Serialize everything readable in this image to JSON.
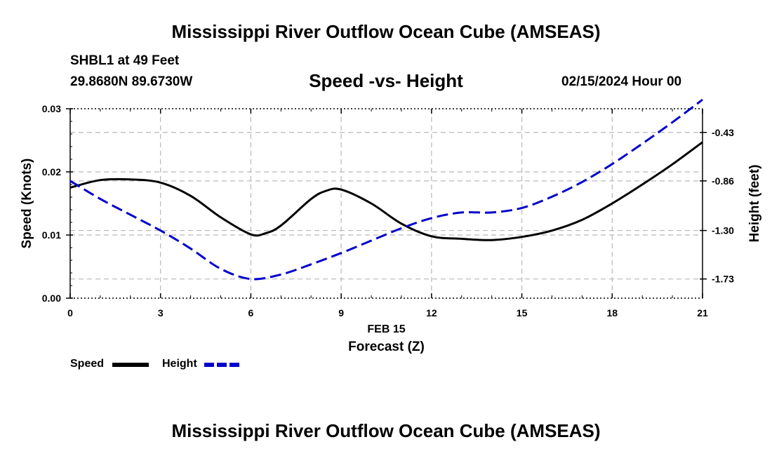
{
  "header": {
    "title": "Mississippi River Outflow Ocean Cube (AMSEAS)",
    "station": "SHBL1 at 49 Feet",
    "coords": "29.8680N  89.6730W",
    "chart_title": "Speed -vs- Height",
    "datetime": "02/15/2024 Hour 00"
  },
  "footer": {
    "title": "Mississippi River Outflow Ocean Cube (AMSEAS)"
  },
  "legend": {
    "items": [
      {
        "label": "Speed",
        "color": "#000000",
        "style": "solid"
      },
      {
        "label": "Height",
        "color": "#0000cc",
        "style": "dashed"
      }
    ]
  },
  "chart_data": {
    "type": "line",
    "title": "Speed -vs- Height",
    "xlabel": "Forecast (Z)",
    "xlabel_date": "FEB 15",
    "ylabel": "Speed (Knots)",
    "y2label": "Height (feet)",
    "xlim": [
      0,
      21
    ],
    "ylim": [
      0,
      0.03
    ],
    "y2lim": [
      -1.9,
      -0.22
    ],
    "x_ticks": [
      0,
      3,
      6,
      9,
      12,
      15,
      18,
      21
    ],
    "x_tick_labels": [
      "0",
      "3",
      "6",
      "9",
      "12",
      "15",
      "18",
      "21"
    ],
    "y_ticks": [
      0,
      0.01,
      0.02,
      0.03
    ],
    "y_tick_labels": [
      "0.00",
      "0.01",
      "0.02",
      "0.03"
    ],
    "y2_ticks": [
      -1.73,
      -1.3,
      -0.86,
      -0.43
    ],
    "y2_tick_labels": [
      "-1.73",
      "-1.30",
      "-0.86",
      "-0.43"
    ],
    "grid": true,
    "series": [
      {
        "name": "Speed",
        "axis": "left",
        "color": "#000000",
        "x": [
          0,
          1,
          2,
          3,
          4,
          5,
          6,
          6.5,
          7,
          8,
          8.5,
          9,
          10,
          11,
          12,
          13,
          14,
          15,
          16,
          17,
          18,
          19,
          20,
          21
        ],
        "values": [
          0.0175,
          0.0187,
          0.0188,
          0.0183,
          0.0162,
          0.0128,
          0.0101,
          0.0103,
          0.0115,
          0.0157,
          0.017,
          0.0172,
          0.015,
          0.0118,
          0.0098,
          0.0094,
          0.0092,
          0.0097,
          0.0107,
          0.0124,
          0.015,
          0.018,
          0.0212,
          0.0247
        ]
      },
      {
        "name": "Height",
        "axis": "right",
        "color": "#0000cc",
        "x": [
          0,
          1,
          2,
          3,
          4,
          5,
          6,
          7,
          8,
          9,
          10,
          11,
          12,
          13,
          14,
          15,
          16,
          17,
          18,
          19,
          20,
          21
        ],
        "values": [
          -0.86,
          -1.02,
          -1.16,
          -1.3,
          -1.46,
          -1.64,
          -1.73,
          -1.69,
          -1.6,
          -1.5,
          -1.39,
          -1.28,
          -1.19,
          -1.14,
          -1.14,
          -1.1,
          -1.0,
          -0.87,
          -0.71,
          -0.53,
          -0.34,
          -0.14
        ]
      }
    ]
  }
}
